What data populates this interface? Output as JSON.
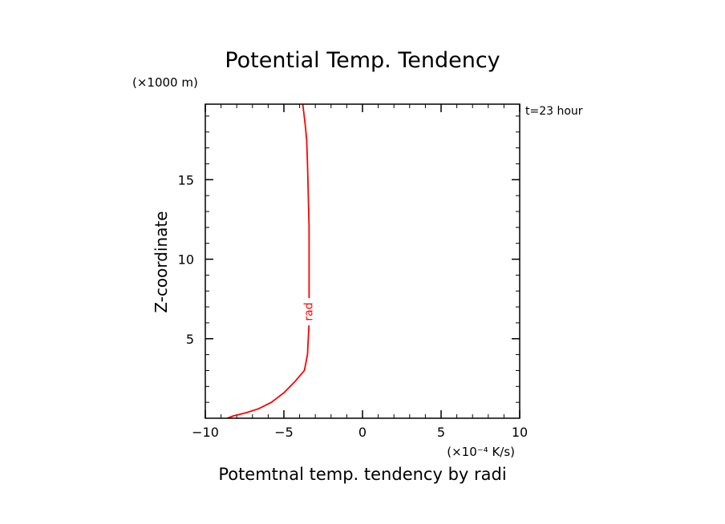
{
  "chart_data": {
    "type": "line",
    "title": "Potential Temp. Tendency",
    "xlabel": "Potemtnal temp. tendency by radi",
    "ylabel": "Z-coordinate",
    "x_unit_label": "(×10⁻⁴ K/s)",
    "y_unit_label": "(×1000 m)",
    "time_label": "t=23 hour",
    "xlim": [
      -10,
      10
    ],
    "ylim": [
      0,
      19.75
    ],
    "x_ticks": [
      -10,
      -5,
      0,
      5,
      10
    ],
    "y_ticks": [
      5,
      10,
      15
    ],
    "x_tick_labels": [
      "−10",
      "−5",
      "0",
      "5",
      "10"
    ],
    "y_tick_labels": [
      "5",
      "10",
      "15"
    ],
    "grid": false,
    "series": [
      {
        "name": "rad",
        "color": "#ff0000",
        "points": [
          [
            -8.6,
            0.0
          ],
          [
            -8.2,
            0.15
          ],
          [
            -7.4,
            0.35
          ],
          [
            -6.6,
            0.6
          ],
          [
            -5.8,
            1.0
          ],
          [
            -5.0,
            1.6
          ],
          [
            -4.3,
            2.3
          ],
          [
            -3.7,
            3.0
          ],
          [
            -3.5,
            4.0
          ],
          [
            -3.45,
            5.0
          ],
          [
            -3.4,
            6.0
          ],
          [
            -3.4,
            8.0
          ],
          [
            -3.4,
            10.0
          ],
          [
            -3.4,
            12.0
          ],
          [
            -3.45,
            14.0
          ],
          [
            -3.5,
            16.0
          ],
          [
            -3.55,
            17.5
          ],
          [
            -3.65,
            18.5
          ],
          [
            -3.8,
            19.75
          ]
        ]
      }
    ]
  }
}
